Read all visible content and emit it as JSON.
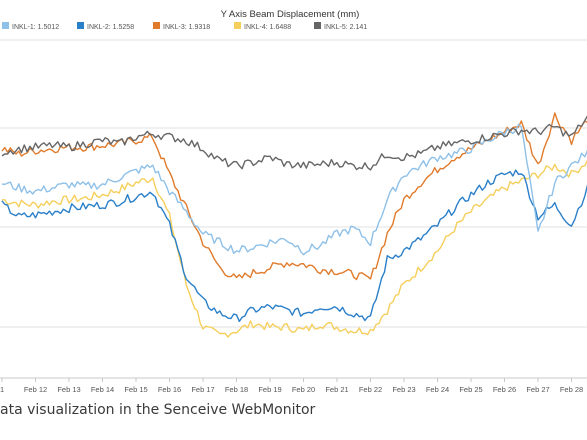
{
  "caption": "ata visualization in the Senceive WebMonitor",
  "chart_data": {
    "type": "line",
    "title": "Y Axis Beam Displacement (mm)",
    "xlabel": "",
    "ylabel": "",
    "grid": true,
    "legend_position": "top",
    "x_ticks": [
      "1",
      "Feb 12",
      "Feb 13",
      "Feb 14",
      "Feb 15",
      "Feb 16",
      "Feb 17",
      "Feb 18",
      "Feb 19",
      "Feb 20",
      "Feb 21",
      "Feb 22",
      "Feb 23",
      "Feb 24",
      "Feb 25",
      "Feb 26",
      "Feb 27",
      "Feb 28"
    ],
    "x": [
      11.0,
      11.5,
      12.0,
      12.5,
      13.0,
      13.5,
      14.0,
      14.5,
      15.0,
      15.5,
      16.0,
      16.5,
      17.0,
      17.5,
      18.0,
      18.5,
      19.0,
      19.5,
      20.0,
      20.5,
      21.0,
      21.5,
      22.0,
      22.5,
      23.0,
      23.5,
      24.0,
      24.5,
      25.0,
      25.5,
      26.0,
      26.5,
      27.0,
      27.5,
      28.0,
      28.6
    ],
    "series": [
      {
        "name": "INKL-1: 1.5012",
        "color": "#8ec0e8",
        "values": [
          1.85,
          1.82,
          1.8,
          1.82,
          1.84,
          1.83,
          1.84,
          1.88,
          1.92,
          1.95,
          1.8,
          1.68,
          1.55,
          1.5,
          1.45,
          1.47,
          1.5,
          1.52,
          1.45,
          1.48,
          1.55,
          1.58,
          1.5,
          1.75,
          1.9,
          1.95,
          2.0,
          2.02,
          2.05,
          2.1,
          2.15,
          2.18,
          1.55,
          1.85,
          1.95,
          2.05
        ]
      },
      {
        "name": "INKL-2: 1.5258",
        "color": "#2a7fc9",
        "values": [
          1.72,
          1.65,
          1.66,
          1.68,
          1.7,
          1.71,
          1.72,
          1.74,
          1.77,
          1.8,
          1.6,
          1.3,
          1.15,
          1.08,
          1.05,
          1.1,
          1.12,
          1.1,
          1.08,
          1.12,
          1.12,
          1.08,
          1.05,
          1.4,
          1.45,
          1.52,
          1.6,
          1.7,
          1.78,
          1.85,
          1.9,
          1.92,
          1.65,
          1.72,
          1.6,
          1.88
        ]
      },
      {
        "name": "INKL-3: 1.9318",
        "color": "#e07b2c",
        "values": [
          2.05,
          2.02,
          2.04,
          2.05,
          2.06,
          2.06,
          2.07,
          2.08,
          2.1,
          2.12,
          1.9,
          1.7,
          1.5,
          1.35,
          1.28,
          1.32,
          1.35,
          1.38,
          1.37,
          1.34,
          1.33,
          1.31,
          1.28,
          1.55,
          1.75,
          1.85,
          1.93,
          2.0,
          2.05,
          2.1,
          2.15,
          2.2,
          1.95,
          2.25,
          2.1,
          2.25
        ]
      },
      {
        "name": "INKL-4: 1.6488",
        "color": "#f5cf5c",
        "values": [
          1.75,
          1.73,
          1.72,
          1.74,
          1.75,
          1.76,
          1.78,
          1.81,
          1.85,
          1.88,
          1.65,
          1.25,
          1.0,
          0.95,
          0.98,
          1.02,
          1.0,
          1.0,
          0.98,
          1.02,
          1.0,
          0.98,
          0.98,
          1.1,
          1.25,
          1.35,
          1.45,
          1.58,
          1.68,
          1.75,
          1.82,
          1.86,
          1.9,
          1.95,
          1.9,
          2.0
        ]
      },
      {
        "name": "INKL-5: 2.141",
        "color": "#666666",
        "values": [
          2.03,
          2.05,
          2.06,
          2.07,
          2.06,
          2.08,
          2.1,
          2.08,
          2.12,
          2.14,
          2.12,
          2.1,
          2.05,
          1.98,
          1.95,
          1.97,
          2.0,
          1.96,
          1.95,
          1.96,
          1.97,
          1.95,
          1.95,
          2.02,
          2.0,
          2.02,
          2.06,
          2.08,
          2.1,
          2.12,
          2.14,
          2.16,
          2.15,
          2.18,
          2.12,
          2.27
        ]
      }
    ]
  }
}
